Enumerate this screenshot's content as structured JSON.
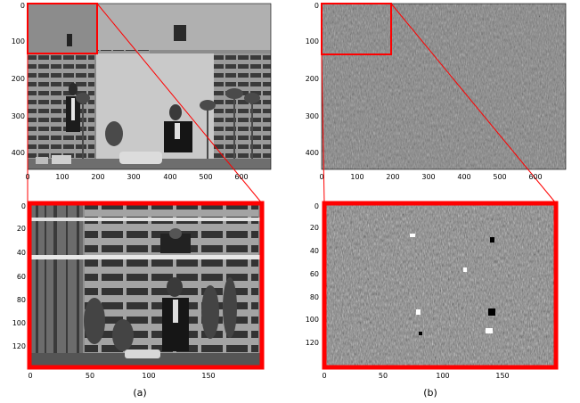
{
  "captions": {
    "a": "(a)",
    "b": "(b)"
  },
  "panels": {
    "top_left": {
      "content": "grayscale photograph",
      "y_ticks": [
        "0",
        "100",
        "200",
        "300",
        "400"
      ],
      "x_ticks": [
        "0",
        "100",
        "200",
        "300",
        "400",
        "500",
        "600"
      ],
      "inset_box_color": "#ff0000"
    },
    "top_right": {
      "content": "grayscale coefficient map",
      "y_ticks": [
        "0",
        "100",
        "200",
        "300",
        "400"
      ],
      "x_ticks": [
        "0",
        "100",
        "200",
        "300",
        "400",
        "500",
        "600"
      ],
      "inset_box_color": "#ff0000"
    },
    "bottom_left": {
      "content": "zoomed photograph",
      "y_ticks": [
        "0",
        "20",
        "40",
        "60",
        "80",
        "100",
        "120"
      ],
      "x_ticks": [
        "0",
        "50",
        "100",
        "150"
      ],
      "frame_color": "#ff0000"
    },
    "bottom_right": {
      "content": "zoomed coefficient map",
      "y_ticks": [
        "0",
        "20",
        "40",
        "60",
        "80",
        "100",
        "120"
      ],
      "x_ticks": [
        "0",
        "50",
        "100",
        "150"
      ],
      "frame_color": "#ff0000"
    }
  },
  "zoom_lines_color": "#ff0000"
}
